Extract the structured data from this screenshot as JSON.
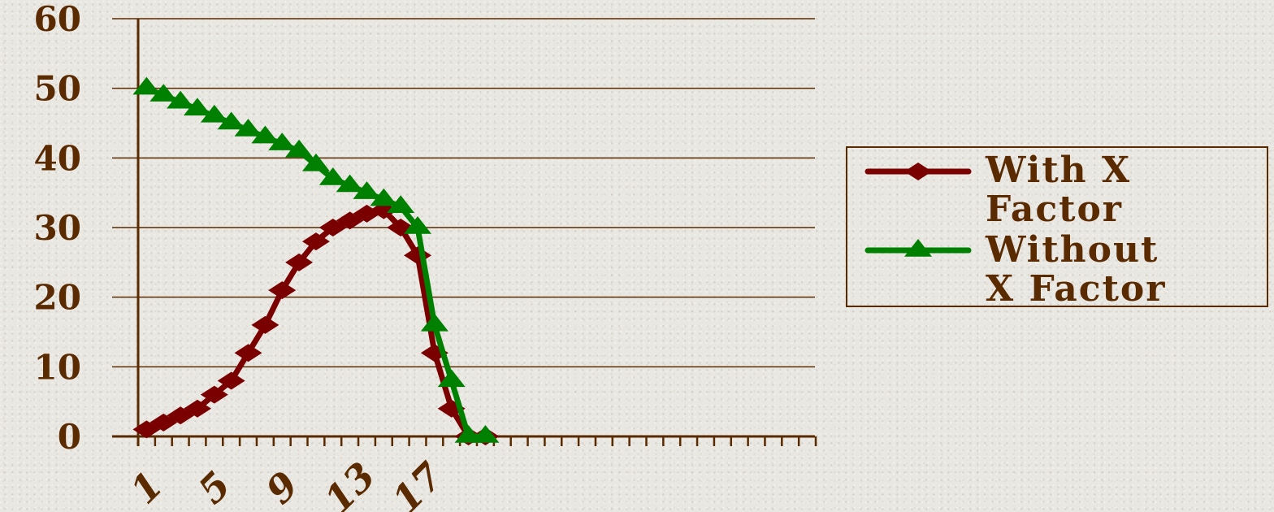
{
  "chart_data": {
    "type": "line",
    "x": [
      1,
      2,
      3,
      4,
      5,
      6,
      7,
      8,
      9,
      10,
      11,
      12,
      13,
      14,
      15,
      16,
      17,
      18,
      19,
      20,
      21,
      22,
      23,
      24,
      25,
      26,
      27,
      28,
      29,
      30,
      31,
      32,
      33,
      34,
      35,
      36,
      37,
      38,
      39,
      40
    ],
    "x_tick_labels": [
      "1",
      "5",
      "9",
      "13",
      "17"
    ],
    "y_tick_labels": [
      "0",
      "10",
      "20",
      "30",
      "40",
      "50",
      "60"
    ],
    "ylim": [
      0,
      60
    ],
    "grid": true,
    "legend_position": "right",
    "series": [
      {
        "name_lines": [
          "With X",
          "Factor"
        ],
        "color": "#7a0000",
        "marker": "diamond",
        "x": [
          1,
          2,
          3,
          4,
          5,
          6,
          7,
          8,
          9,
          10,
          11,
          12,
          13,
          14,
          15,
          16,
          17,
          18,
          19,
          20,
          21
        ],
        "values": [
          1,
          2,
          3,
          4,
          6,
          8,
          12,
          16,
          21,
          25,
          28,
          30,
          31,
          32,
          32.5,
          30,
          26,
          12,
          4,
          0,
          0
        ]
      },
      {
        "name_lines": [
          "Without",
          "X Factor"
        ],
        "color": "#008000",
        "marker": "triangle",
        "x": [
          1,
          2,
          3,
          4,
          5,
          6,
          7,
          8,
          9,
          10,
          11,
          12,
          13,
          14,
          15,
          16,
          17,
          18,
          19,
          20,
          21
        ],
        "values": [
          50,
          49,
          48,
          47,
          46,
          45,
          44,
          43,
          42,
          41,
          39,
          37,
          36,
          35,
          34,
          33,
          30,
          16,
          8,
          0,
          0
        ]
      }
    ]
  }
}
